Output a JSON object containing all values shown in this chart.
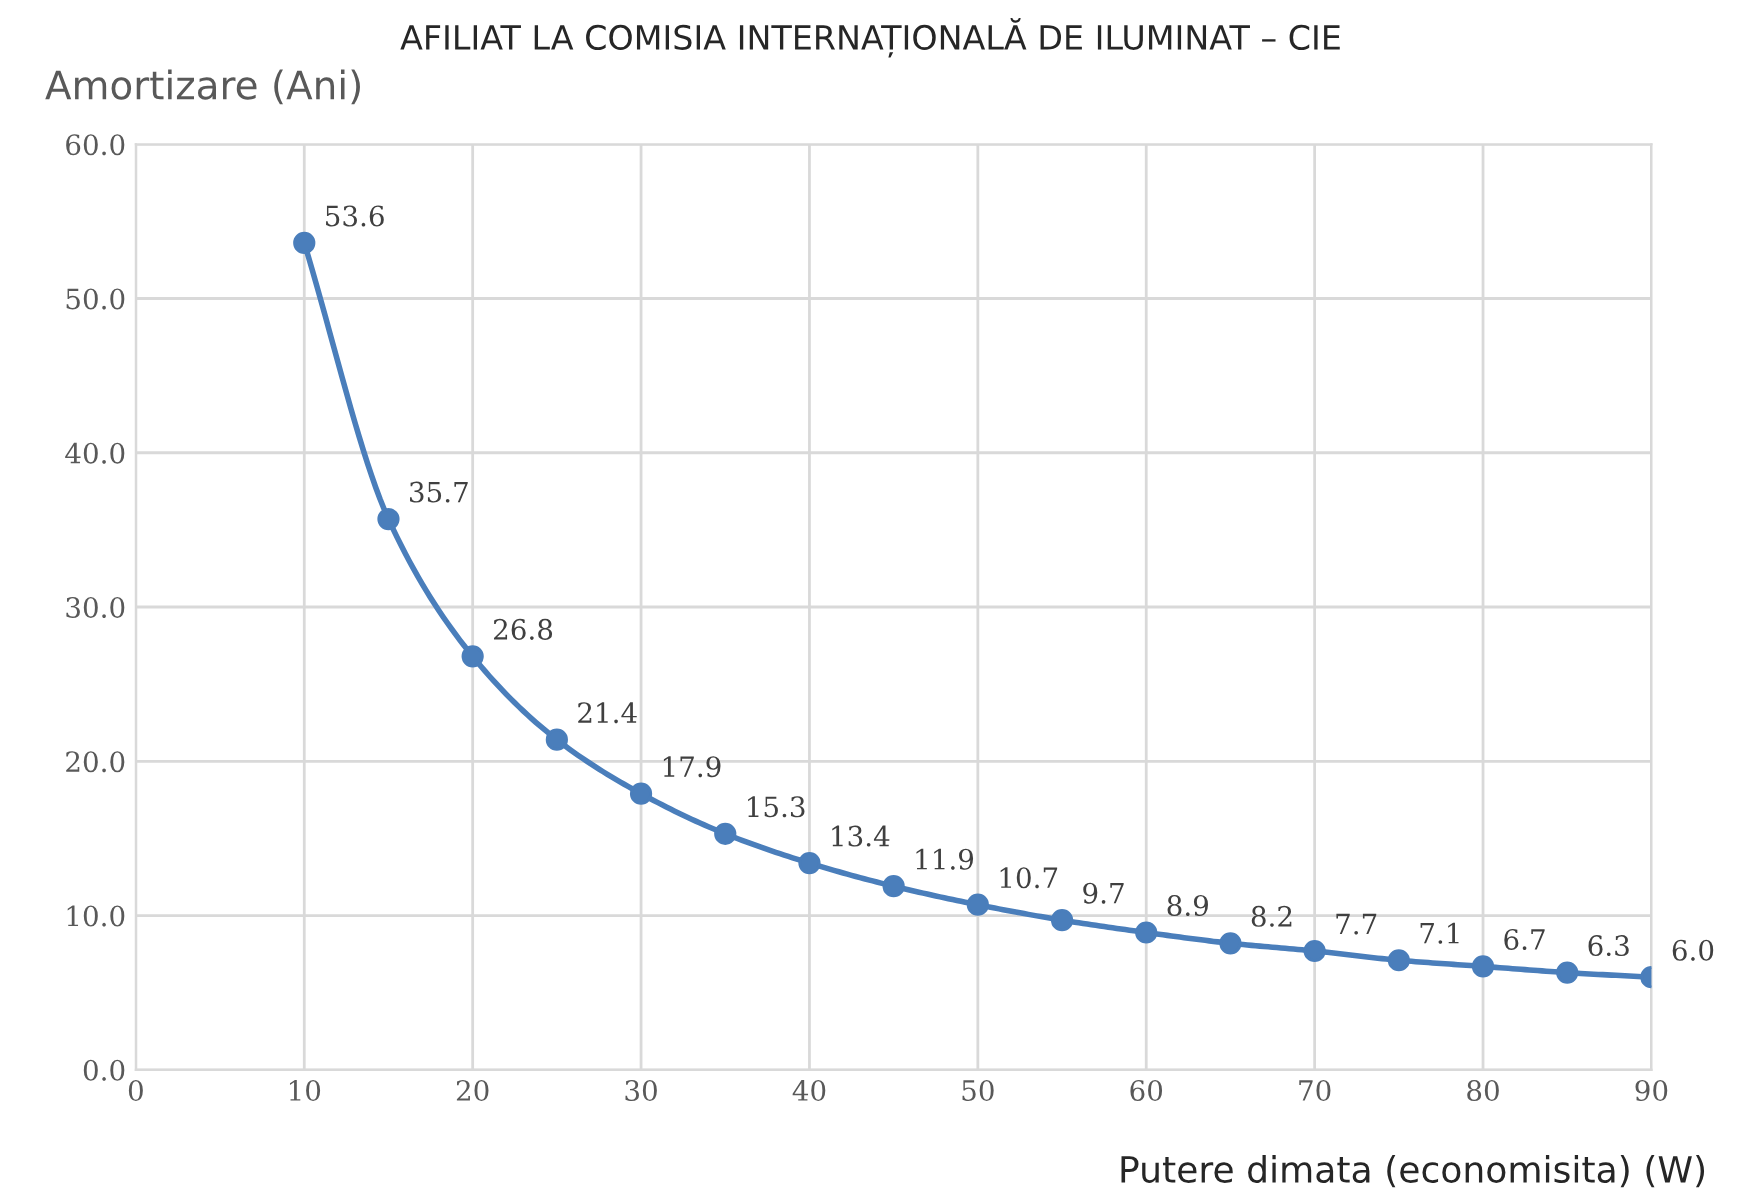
{
  "chart_data": {
    "type": "line",
    "ylabel": "Amortizare (Ani)",
    "xlabel": "Putere dimata (economisita) (W)",
    "annotations": [
      "AFILIAT LA COMISIA INTERNAȚIONALĂ DE ILUMINAT – CIE"
    ],
    "x": [
      10,
      15,
      20,
      25,
      30,
      35,
      40,
      45,
      50,
      55,
      60,
      65,
      70,
      75,
      80,
      85,
      90
    ],
    "series": [
      {
        "color": "#4a7ebb",
        "values": [
          53.6,
          35.7,
          26.8,
          21.4,
          17.9,
          15.3,
          13.4,
          11.9,
          10.7,
          9.7,
          8.9,
          8.2,
          7.7,
          7.1,
          6.7,
          6.3,
          6.0
        ],
        "value_labels": [
          "53.6",
          "35.7",
          "26.8",
          "21.4",
          "17.9",
          "15.3",
          "13.4",
          "11.9",
          "10.7",
          "9.7",
          "8.9",
          "8.2",
          "7.7",
          "7.1",
          "6.7",
          "6.3",
          "6.0"
        ]
      }
    ],
    "marker": "circle",
    "line_style": "solid",
    "grid": true,
    "xlim": [
      0,
      90
    ],
    "xticks": [
      0,
      10,
      20,
      30,
      40,
      50,
      60,
      70,
      80,
      90
    ],
    "ylim": [
      0,
      60
    ],
    "yticks": [
      {
        "value": 0,
        "label": "0.0"
      },
      {
        "value": 10,
        "label": "10.0"
      },
      {
        "value": 20,
        "label": "20.0"
      },
      {
        "value": 30,
        "label": "30.0"
      },
      {
        "value": 40,
        "label": "40.0"
      },
      {
        "value": 50,
        "label": "50.0"
      },
      {
        "value": 60,
        "label": "60.0"
      }
    ]
  }
}
